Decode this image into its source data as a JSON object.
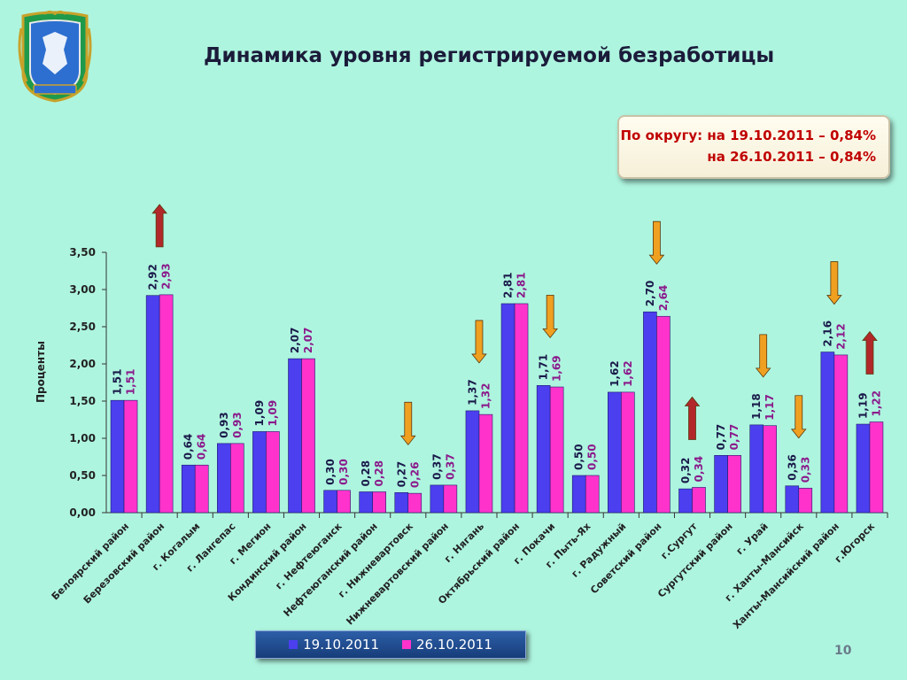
{
  "header": {
    "title": "Динамика уровня регистрируемой безработицы"
  },
  "info_box": {
    "line1": "По округу: на 19.10.2011 – 0,84%",
    "line2": "на 26.10.2011 – 0,84%",
    "text_color": "#c00000"
  },
  "colors": {
    "series_1": "#4b3ff0",
    "series_2": "#ff33cc",
    "series_1_label": "#1a1a4a",
    "series_2_label": "#8b1a8b",
    "arrow_up": "#b2282a",
    "arrow_down": "#f0a020",
    "background": "#aef5df"
  },
  "chart_data": {
    "type": "bar",
    "ylabel": "Проценты",
    "ylim": [
      0,
      3.5
    ],
    "yticks": [
      "0,00",
      "0,50",
      "1,00",
      "1,50",
      "2,00",
      "2,50",
      "3,00",
      "3,50"
    ],
    "categories": [
      "Белоярский район",
      "Березовский район",
      "г. Когалым",
      "г. Лангепас",
      "г. Мегион",
      "Кондинский район",
      "г. Нефтеюганск",
      "Нефтеюганский район",
      "г. Нижневартовск",
      "Нижневартовский район",
      "г. Нягань",
      "Октябрьский район",
      "г. Покачи",
      "г. Пыть-Ях",
      "г. Радужный",
      "Советский район",
      "г.Сургут",
      "Сургутский район",
      "г. Урай",
      "г. Ханты-Мансийск",
      "Ханты-Мансийский район",
      "г.Югорск"
    ],
    "series": [
      {
        "name": "19.10.2011",
        "values": [
          1.51,
          2.92,
          0.64,
          0.93,
          1.09,
          2.07,
          0.3,
          0.28,
          0.27,
          0.37,
          1.37,
          2.81,
          1.71,
          0.5,
          1.62,
          2.7,
          0.32,
          0.77,
          1.18,
          0.36,
          2.16,
          1.19
        ],
        "labels": [
          "1,51",
          "2,92",
          "0,64",
          "0,93",
          "1,09",
          "2,07",
          "0,30",
          "0,28",
          "0,27",
          "0,37",
          "1,37",
          "2,81",
          "1,71",
          "0,50",
          "1,62",
          "2,70",
          "0,32",
          "0,77",
          "1,18",
          "0,36",
          "2,16",
          "1,19"
        ]
      },
      {
        "name": "26.10.2011",
        "values": [
          1.51,
          2.93,
          0.64,
          0.93,
          1.09,
          2.07,
          0.3,
          0.28,
          0.26,
          0.37,
          1.32,
          2.81,
          1.69,
          0.5,
          1.62,
          2.64,
          0.34,
          0.77,
          1.17,
          0.33,
          2.12,
          1.22
        ],
        "labels": [
          "1,51",
          "2,93",
          "0,64",
          "0,93",
          "1,09",
          "2,07",
          "0,30",
          "0,28",
          "0,26",
          "0,37",
          "1,32",
          "2,81",
          "1,69",
          "0,50",
          "1,62",
          "2,64",
          "0,34",
          "0,77",
          "1,17",
          "0,33",
          "2,12",
          "1,22"
        ]
      }
    ],
    "trend_arrows": [
      {
        "category_index": 1,
        "direction": "up"
      },
      {
        "category_index": 8,
        "direction": "down"
      },
      {
        "category_index": 10,
        "direction": "down"
      },
      {
        "category_index": 12,
        "direction": "down"
      },
      {
        "category_index": 15,
        "direction": "down"
      },
      {
        "category_index": 16,
        "direction": "up"
      },
      {
        "category_index": 18,
        "direction": "down"
      },
      {
        "category_index": 19,
        "direction": "down"
      },
      {
        "category_index": 20,
        "direction": "down"
      },
      {
        "category_index": 21,
        "direction": "up"
      }
    ],
    "grid": false,
    "legend_position": "bottom"
  },
  "legend": {
    "items": [
      {
        "label": "19.10.2011"
      },
      {
        "label": "26.10.2011"
      }
    ]
  },
  "footer": {
    "page_number": "10"
  }
}
